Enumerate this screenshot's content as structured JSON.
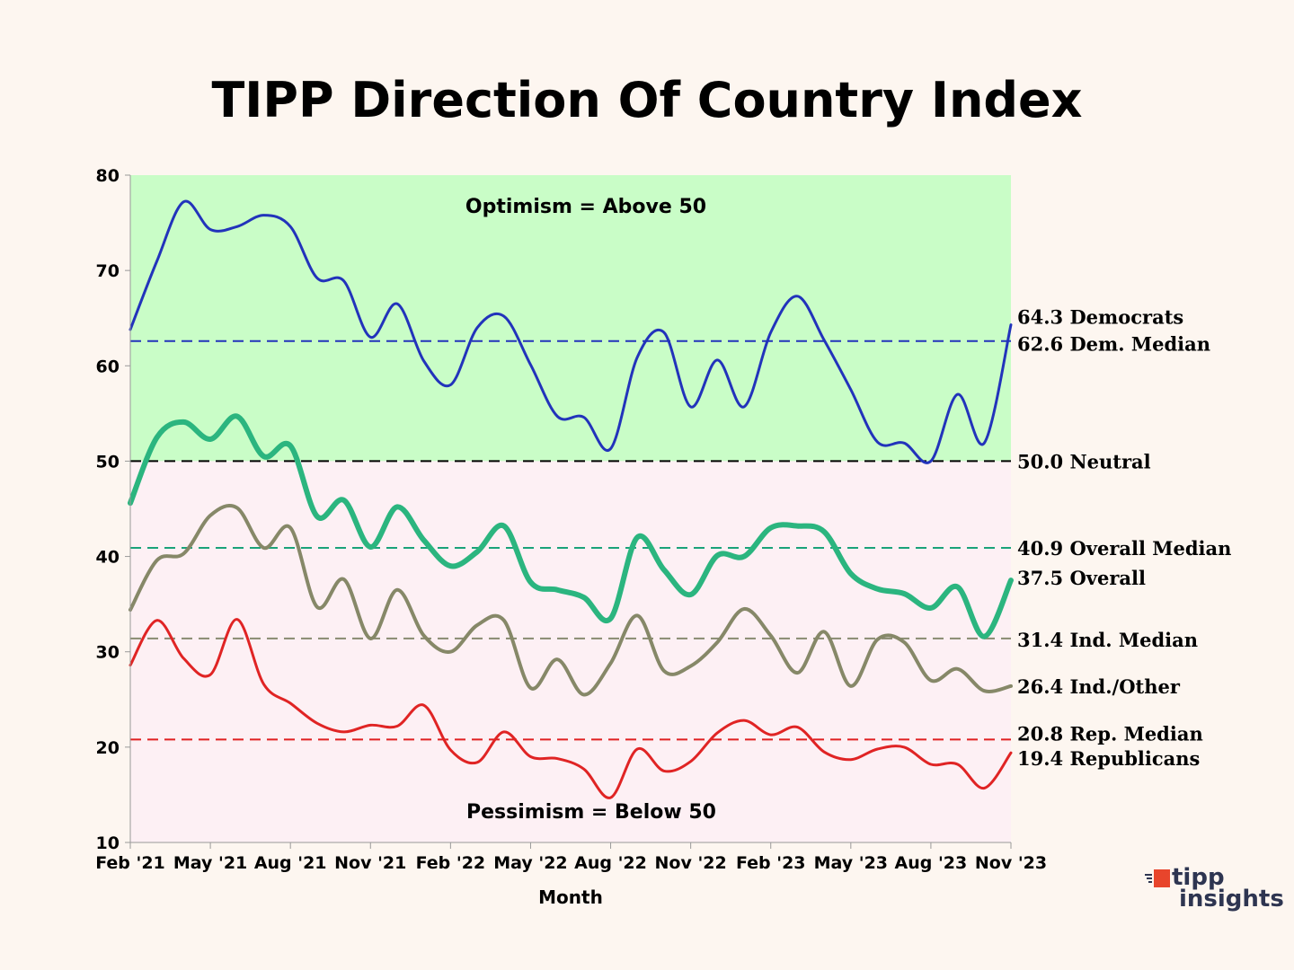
{
  "chart_data": {
    "type": "line",
    "title": "TIPP Direction Of Country Index",
    "xlabel": "Month",
    "ylabel": "",
    "ylim": [
      10,
      80
    ],
    "yticks": [
      10,
      20,
      30,
      40,
      50,
      60,
      70,
      80
    ],
    "xtick_labels": [
      "Feb '21",
      "May '21",
      "Aug '21",
      "Nov '21",
      "Feb '22",
      "May '22",
      "Aug '22",
      "Nov '22",
      "Feb '23",
      "May '23",
      "Aug '23",
      "Nov '23"
    ],
    "months": 34,
    "zones": [
      {
        "name": "optimism",
        "label": "Optimism = Above 50",
        "from": 50,
        "to": 80,
        "color": "#c9fdc7"
      },
      {
        "name": "pessimism",
        "label": "Pessimism = Below 50",
        "from": 10,
        "to": 50,
        "color": "#fdf0f4"
      }
    ],
    "reference_lines": [
      {
        "name": "dem-median",
        "value": 62.6,
        "label": "62.6 Dem. Median",
        "color": "#2233bb"
      },
      {
        "name": "neutral",
        "value": 50.0,
        "label": "50.0 Neutral",
        "color": "#000000"
      },
      {
        "name": "overall-median",
        "value": 40.9,
        "label": "40.9 Overall Median",
        "color": "#1aa37a"
      },
      {
        "name": "ind-median",
        "value": 31.4,
        "label": "31.4 Ind. Median",
        "color": "#888a70"
      },
      {
        "name": "rep-median",
        "value": 20.8,
        "label": "20.8 Rep. Median",
        "color": "#e02020"
      }
    ],
    "series": [
      {
        "name": "Democrats",
        "label": "64.3 Democrats",
        "color": "#2233bb",
        "width": 3,
        "values": [
          63.8,
          71.0,
          77.2,
          74.3,
          74.6,
          75.8,
          74.6,
          69.2,
          68.9,
          63.0,
          66.5,
          60.5,
          58.0,
          64.0,
          65.2,
          60.1,
          54.7,
          54.6,
          51.3,
          60.9,
          63.5,
          55.7,
          60.6,
          55.7,
          63.5,
          67.3,
          62.7,
          57.5,
          52.0,
          51.9,
          50.0,
          57.0,
          51.9,
          64.3
        ]
      },
      {
        "name": "Overall",
        "label": "37.5 Overall",
        "color": "#2bb57f",
        "width": 6,
        "values": [
          45.6,
          52.5,
          54.1,
          52.3,
          54.7,
          50.5,
          51.6,
          44.2,
          45.9,
          41.0,
          45.2,
          41.7,
          39.0,
          40.5,
          43.2,
          37.3,
          36.5,
          35.7,
          33.5,
          42.0,
          38.6,
          36.0,
          40.1,
          40.0,
          43.0,
          43.2,
          42.6,
          38.2,
          36.6,
          36.1,
          34.6,
          36.8,
          31.6,
          37.5
        ]
      },
      {
        "name": "Ind./Other",
        "label": "26.4 Ind./Other",
        "color": "#868868",
        "width": 4,
        "values": [
          34.4,
          39.6,
          40.3,
          44.3,
          45.1,
          40.9,
          43.0,
          34.7,
          37.6,
          31.4,
          36.5,
          31.7,
          30.0,
          32.8,
          33.3,
          26.2,
          29.2,
          25.5,
          28.8,
          33.8,
          28.0,
          28.5,
          31.0,
          34.5,
          31.7,
          27.8,
          32.1,
          26.4,
          31.3,
          31.0,
          27.0,
          28.2,
          25.9,
          26.4
        ]
      },
      {
        "name": "Republicans",
        "label": "19.4 Republicans",
        "color": "#e02424",
        "width": 3,
        "values": [
          28.6,
          33.3,
          29.3,
          27.6,
          33.4,
          26.6,
          24.6,
          22.5,
          21.6,
          22.3,
          22.2,
          24.4,
          19.7,
          18.4,
          21.6,
          19.0,
          18.8,
          17.7,
          14.7,
          19.8,
          17.5,
          18.5,
          21.5,
          22.8,
          21.3,
          22.1,
          19.5,
          18.7,
          19.8,
          20.0,
          18.2,
          18.2,
          15.7,
          19.4
        ]
      }
    ]
  },
  "logo": {
    "line1": "tipp",
    "line2": "insights",
    "mark_color": "#e8452c"
  }
}
